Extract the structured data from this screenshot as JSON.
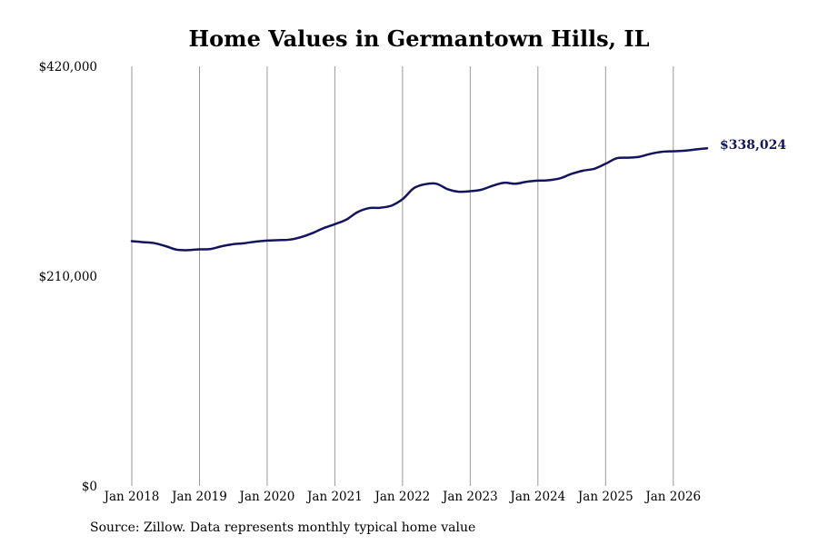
{
  "title": "Home Values in Germantown Hills, IL",
  "source": "Source: Zillow. Data represents monthly typical home value",
  "chart_data": {
    "type": "line",
    "title": "Home Values in Germantown Hills, IL",
    "xlabel": "",
    "ylabel": "",
    "ylim": [
      0,
      420000
    ],
    "xlim": [
      "2018-01",
      "2026-07"
    ],
    "y_ticks": [
      0,
      210000,
      420000
    ],
    "y_tick_labels": [
      "$0",
      "$210,000",
      "$420,000"
    ],
    "x_ticks": [
      "2018-01",
      "2019-01",
      "2020-01",
      "2021-01",
      "2022-01",
      "2023-01",
      "2024-01",
      "2025-01",
      "2026-01"
    ],
    "x_tick_labels": [
      "Jan 2018",
      "Jan 2019",
      "Jan 2020",
      "Jan 2021",
      "Jan 2022",
      "Jan 2023",
      "Jan 2024",
      "Jan 2025",
      "Jan 2026"
    ],
    "grid": "vertical",
    "line_color": "#14145e",
    "end_label": "$338,024",
    "series": [
      {
        "x": [
          "2018-01",
          "2018-03",
          "2018-05",
          "2018-07",
          "2018-09",
          "2018-11",
          "2019-01",
          "2019-03",
          "2019-05",
          "2019-07",
          "2019-09",
          "2019-11",
          "2020-01",
          "2020-03",
          "2020-05",
          "2020-07",
          "2020-09",
          "2020-11",
          "2021-01",
          "2021-03",
          "2021-05",
          "2021-07",
          "2021-09",
          "2021-11",
          "2022-01",
          "2022-03",
          "2022-05",
          "2022-07",
          "2022-09",
          "2022-11",
          "2023-01",
          "2023-03",
          "2023-05",
          "2023-07",
          "2023-09",
          "2023-11",
          "2024-01",
          "2024-03",
          "2024-05",
          "2024-07",
          "2024-09",
          "2024-11",
          "2025-01",
          "2025-03",
          "2025-05",
          "2025-07",
          "2025-09",
          "2025-11",
          "2026-01",
          "2026-03",
          "2026-05",
          "2026-07"
        ],
        "values": [
          245000,
          244000,
          243000,
          240000,
          236500,
          236000,
          236800,
          237200,
          240000,
          242000,
          243000,
          244500,
          245500,
          246000,
          246500,
          249000,
          253000,
          258000,
          262000,
          266500,
          274000,
          278000,
          278500,
          280500,
          287000,
          298000,
          302000,
          302500,
          297000,
          294500,
          295000,
          296500,
          300500,
          303500,
          302500,
          304500,
          305500,
          306000,
          308000,
          312500,
          315500,
          317500,
          322500,
          328000,
          328500,
          329500,
          332500,
          334500,
          335000,
          335500,
          336800,
          338024
        ]
      }
    ]
  }
}
